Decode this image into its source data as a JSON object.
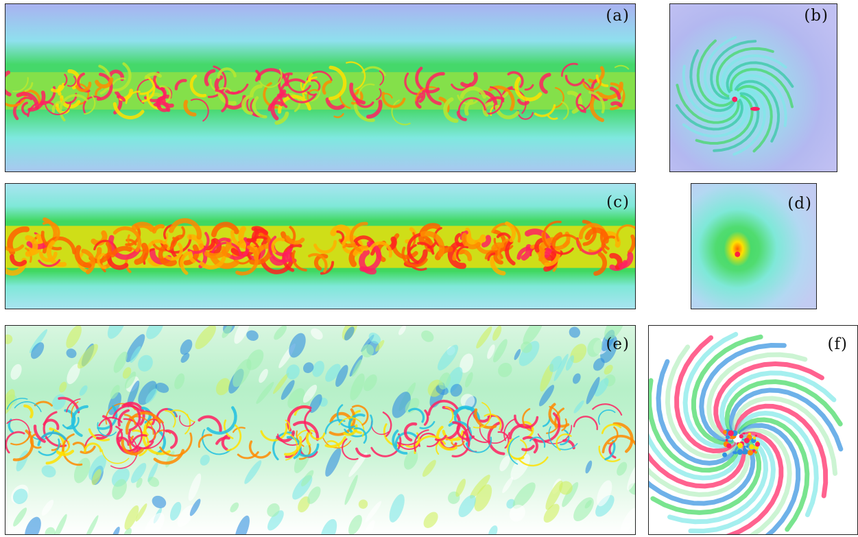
{
  "figure": {
    "panels": [
      {
        "id": "a",
        "label": "(a)",
        "view": "side",
        "field": "magnitude",
        "colors": [
          "#a9b2f0",
          "#7fe8e8",
          "#35d860",
          "#ffe000",
          "#ff8a00",
          "#ff2060"
        ]
      },
      {
        "id": "b",
        "label": "(b)",
        "view": "top",
        "field": "magnitude",
        "colors": [
          "#b3b8f0",
          "#7fe8e8",
          "#35d860",
          "#ffe000",
          "#ff2060"
        ]
      },
      {
        "id": "c",
        "label": "(c)",
        "view": "side",
        "field": "magnitude",
        "colors": [
          "#a9e4f0",
          "#7fe8e8",
          "#35d860",
          "#ffe000",
          "#ff8a00",
          "#ff2060"
        ]
      },
      {
        "id": "d",
        "label": "(d)",
        "view": "top",
        "field": "magnitude",
        "colors": [
          "#b3d8f2",
          "#7fe8e8",
          "#35d860",
          "#ffe000",
          "#ff2060"
        ]
      },
      {
        "id": "e",
        "label": "(e)",
        "view": "side",
        "field": "signed",
        "colors": [
          "#ffffff",
          "#b6f0c0",
          "#7fe8e8",
          "#3090e0",
          "#ffe000",
          "#ff2060"
        ]
      },
      {
        "id": "f",
        "label": "(f)",
        "view": "top",
        "field": "signed",
        "colors": [
          "#ffffff",
          "#b6f0c0",
          "#7fe8e8",
          "#3090e0",
          "#ffe000",
          "#ff2060"
        ]
      }
    ]
  }
}
